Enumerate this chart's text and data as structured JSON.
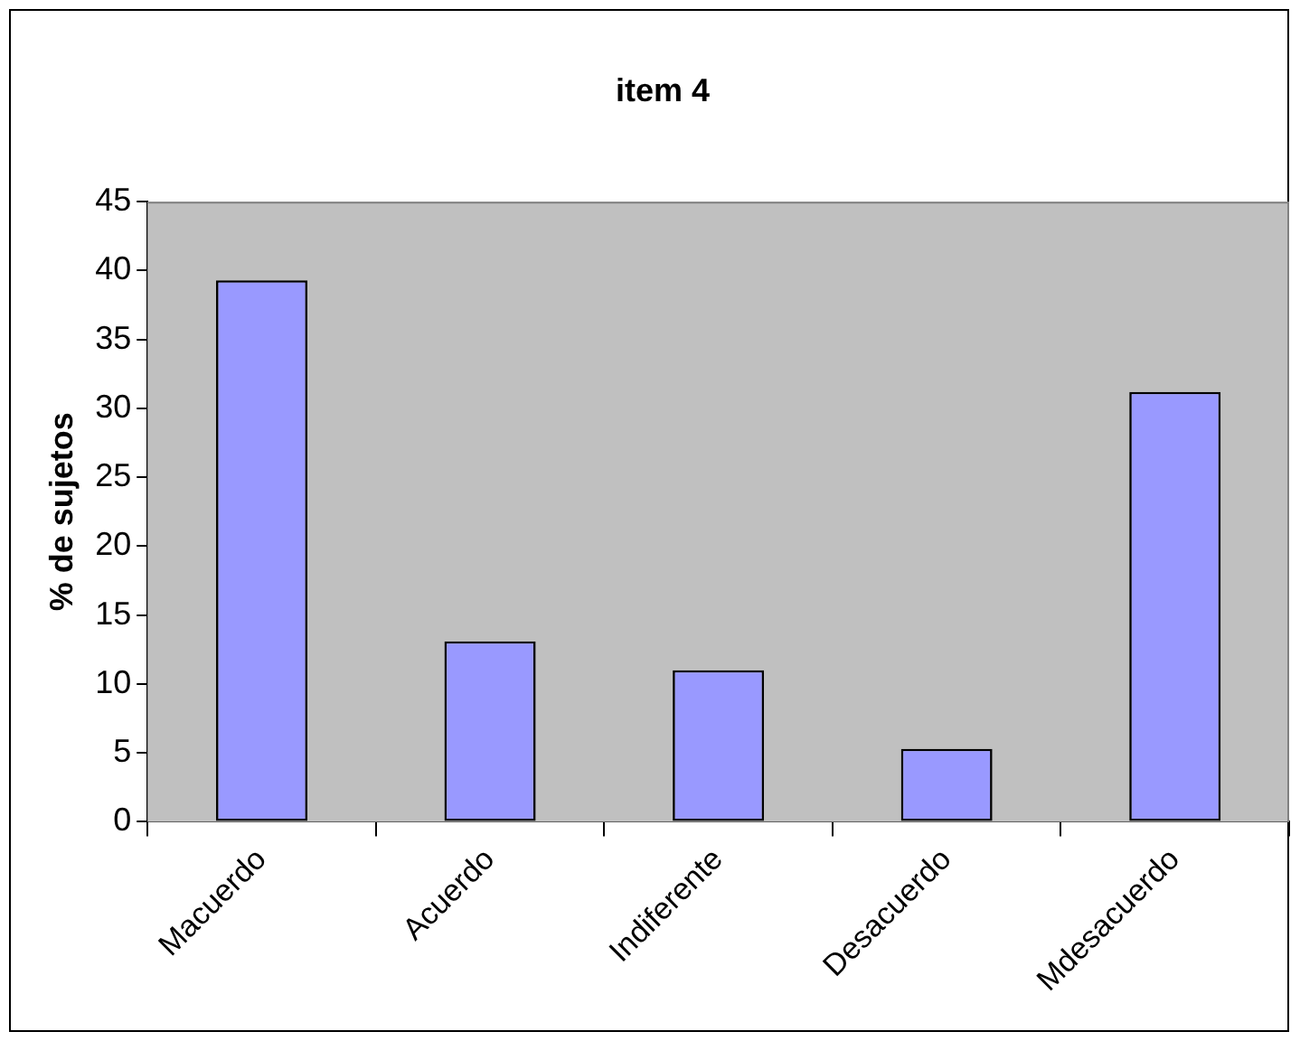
{
  "chart_data": {
    "type": "bar",
    "title": "item 4",
    "ylabel": "% de sujetos",
    "categories": [
      "Macuerdo",
      "Acuerdo",
      "Indiferente",
      "Desacuerdo",
      "Mdesacuerdo"
    ],
    "values": [
      39.3,
      13.1,
      11.0,
      5.3,
      31.2
    ],
    "color": "#9999ff",
    "ylim": [
      0,
      45
    ],
    "yticks": [
      0,
      5,
      10,
      15,
      20,
      25,
      30,
      35,
      40,
      45
    ],
    "grid": false,
    "legend": false
  }
}
